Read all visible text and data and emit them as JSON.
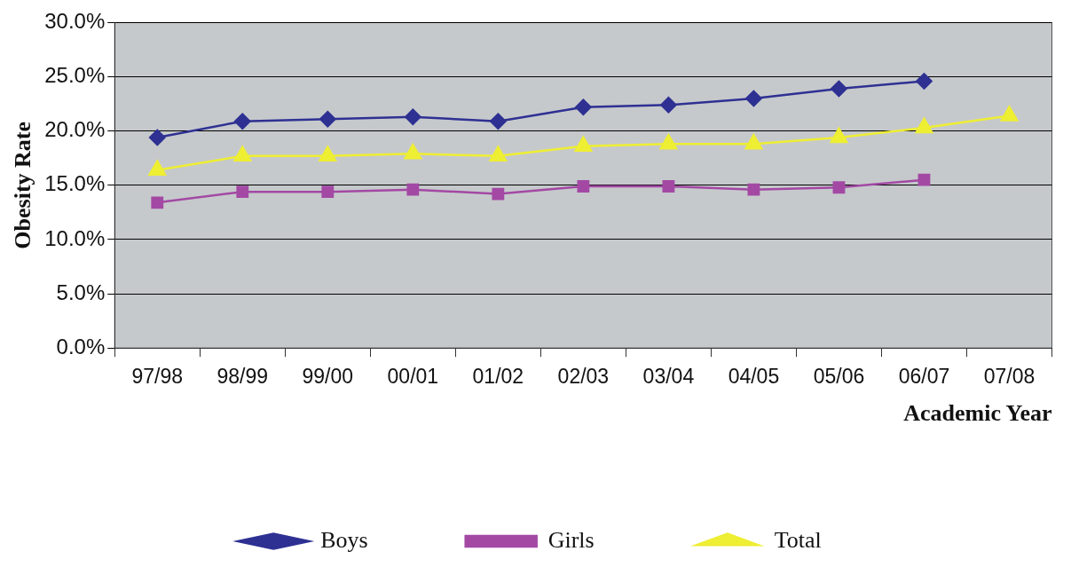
{
  "chart_data": {
    "type": "line",
    "xlabel": "Academic Year",
    "ylabel": "Obesity Rate",
    "categories": [
      "97/98",
      "98/99",
      "99/00",
      "00/01",
      "01/02",
      "02/03",
      "03/04",
      "04/05",
      "05/06",
      "06/07",
      "07/08"
    ],
    "series": [
      {
        "name": "Boys",
        "color": "#2e3192",
        "marker": "diamond",
        "values": [
          19.4,
          20.9,
          21.1,
          21.3,
          20.9,
          22.2,
          22.4,
          23.0,
          23.9,
          24.6,
          null
        ]
      },
      {
        "name": "Girls",
        "color": "#a349a4",
        "marker": "square",
        "values": [
          13.4,
          14.4,
          14.4,
          14.6,
          14.2,
          14.9,
          14.9,
          14.6,
          14.8,
          15.5,
          null
        ]
      },
      {
        "name": "Total",
        "color": "#eeee33",
        "marker": "triangle",
        "values": [
          16.4,
          17.7,
          17.7,
          17.9,
          17.7,
          18.6,
          18.8,
          18.8,
          19.4,
          20.3,
          21.4
        ]
      }
    ],
    "ylim": [
      0,
      30
    ],
    "yticks": [
      {
        "value": 0,
        "label": "0.0%"
      },
      {
        "value": 5,
        "label": "5.0%"
      },
      {
        "value": 10,
        "label": "10.0%"
      },
      {
        "value": 15,
        "label": "15.0%"
      },
      {
        "value": 20,
        "label": "20.0%"
      },
      {
        "value": 25,
        "label": "25.0%"
      },
      {
        "value": 30,
        "label": "30.0%"
      }
    ],
    "grid": "y",
    "legend": "bottom"
  }
}
